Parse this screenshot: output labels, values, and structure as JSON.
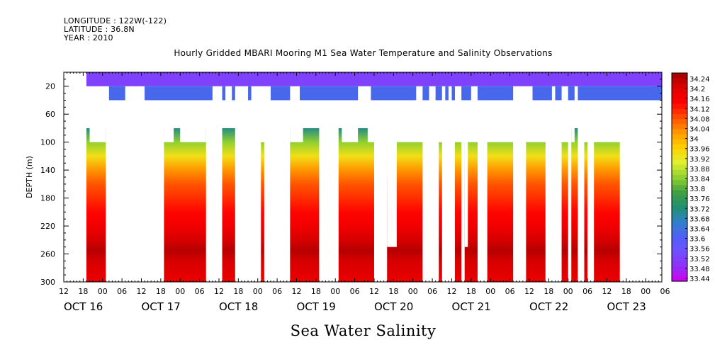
{
  "header": {
    "longitude": "LONGITUDE : 122W(-122)",
    "latitude": "LATITUDE : 36.8N",
    "year": "YEAR : 2010",
    "title": "Hourly Gridded MBARI Mooring M1 Sea Water Temperature and Salinity Observations"
  },
  "footer": {
    "variable_title": "Sea Water Salinity"
  },
  "chart_data": {
    "type": "heatmap",
    "title": "Hourly Gridded MBARI Mooring M1 Sea Water Temperature and Salinity Observations",
    "xlabel": "",
    "ylabel": "DEPTH (m)",
    "y_reversed": true,
    "ylim": [
      0,
      300
    ],
    "yticks": [
      20,
      60,
      100,
      140,
      180,
      220,
      260,
      300
    ],
    "x_units": "hours since OCT 16 12:00, 2010",
    "xlim": [
      0,
      185
    ],
    "xtick_labels": [
      "12",
      "18",
      "00",
      "06",
      "12",
      "18",
      "00",
      "06",
      "12",
      "18",
      "00",
      "06",
      "12",
      "18",
      "00",
      "06",
      "12",
      "18",
      "00",
      "06",
      "12",
      "18",
      "00",
      "06",
      "12",
      "18",
      "00",
      "06",
      "12",
      "18",
      "00",
      "06"
    ],
    "date_labels": [
      {
        "label": "OCT 16",
        "hour": 0
      },
      {
        "label": "OCT 17",
        "hour": 24
      },
      {
        "label": "OCT 18",
        "hour": 48
      },
      {
        "label": "OCT 19",
        "hour": 72
      },
      {
        "label": "OCT 20",
        "hour": 96
      },
      {
        "label": "OCT 21",
        "hour": 120
      },
      {
        "label": "OCT 22",
        "hour": 144
      },
      {
        "label": "OCT 23",
        "hour": 168
      }
    ],
    "colorbar": {
      "labels": [
        "34.24",
        "34.2",
        "34.16",
        "34.12",
        "34.08",
        "34.04",
        "34",
        "33.96",
        "33.92",
        "33.88",
        "33.84",
        "33.8",
        "33.76",
        "33.72",
        "33.68",
        "33.64",
        "33.6",
        "33.56",
        "33.52",
        "33.48",
        "33.44"
      ],
      "min": 33.44,
      "max": 34.26,
      "colors": [
        "#d000f0",
        "#9030f8",
        "#7050ff",
        "#5060f8",
        "#3080c8",
        "#209070",
        "#40a040",
        "#90d030",
        "#e0f030",
        "#ffd000",
        "#ff9a00",
        "#ff5000",
        "#ff0000",
        "#e00000",
        "#a00000"
      ]
    },
    "surface_layer": {
      "depth_top": 0,
      "depth_bottom": 40,
      "shallow_salinity": 33.53,
      "deep_salinity": 33.63,
      "deep_sensor_start_depth": 20,
      "deep_sensor_gaps": [
        [
          7,
          14
        ],
        [
          19,
          25
        ],
        [
          46,
          49
        ],
        [
          50,
          52
        ],
        [
          53,
          57
        ],
        [
          58,
          64
        ],
        [
          70,
          73
        ],
        [
          91,
          95
        ],
        [
          109,
          111
        ],
        [
          113,
          115
        ],
        [
          117,
          118
        ],
        [
          119,
          120
        ],
        [
          121,
          123
        ],
        [
          126,
          128
        ],
        [
          139,
          145
        ],
        [
          151,
          152
        ],
        [
          154,
          156
        ],
        [
          158,
          159
        ]
      ]
    },
    "profiles": [
      {
        "start": 7,
        "end": 13,
        "top": 80,
        "notches": [
          [
            8,
            13,
            100
          ]
        ]
      },
      {
        "start": 31,
        "end": 44,
        "top": 80,
        "notches": [
          [
            31,
            34,
            100
          ],
          [
            36,
            44,
            100
          ]
        ]
      },
      {
        "start": 49,
        "end": 53,
        "top": 80,
        "notches": []
      },
      {
        "start": 61,
        "end": 62,
        "top": 100,
        "notches": []
      },
      {
        "start": 70,
        "end": 79,
        "top": 80,
        "notches": [
          [
            70,
            74,
            100
          ]
        ]
      },
      {
        "start": 85,
        "end": 96,
        "top": 80,
        "notches": [
          [
            86,
            91,
            100
          ],
          [
            94,
            96,
            100
          ]
        ]
      },
      {
        "start": 100,
        "end": 111,
        "top": 100,
        "notches": [
          [
            100,
            102,
            150
          ],
          [
            100,
            103,
            250
          ]
        ]
      },
      {
        "start": 116,
        "end": 117,
        "top": 100,
        "notches": []
      },
      {
        "start": 121,
        "end": 123,
        "top": 100,
        "notches": []
      },
      {
        "start": 124,
        "end": 128,
        "top": 100,
        "notches": [
          [
            124,
            125,
            250
          ]
        ]
      },
      {
        "start": 131,
        "end": 139,
        "top": 100,
        "notches": []
      },
      {
        "start": 143,
        "end": 149,
        "top": 100,
        "notches": []
      },
      {
        "start": 154,
        "end": 156,
        "top": 100,
        "notches": []
      },
      {
        "start": 157,
        "end": 159,
        "top": 80,
        "notches": [
          [
            157,
            158,
            100
          ]
        ]
      },
      {
        "start": 161,
        "end": 162,
        "top": 100,
        "notches": []
      },
      {
        "start": 164,
        "end": 172,
        "top": 100,
        "notches": []
      }
    ],
    "vertical_profile": [
      {
        "depth": 80,
        "salinity": 33.72
      },
      {
        "depth": 100,
        "salinity": 33.85
      },
      {
        "depth": 120,
        "salinity": 33.94
      },
      {
        "depth": 140,
        "salinity": 34.03
      },
      {
        "depth": 160,
        "salinity": 34.08
      },
      {
        "depth": 180,
        "salinity": 34.11
      },
      {
        "depth": 200,
        "salinity": 34.14
      },
      {
        "depth": 220,
        "salinity": 34.17
      },
      {
        "depth": 240,
        "salinity": 34.21
      },
      {
        "depth": 255,
        "salinity": 34.24
      },
      {
        "depth": 270,
        "salinity": 34.21
      },
      {
        "depth": 300,
        "salinity": 34.18
      }
    ]
  }
}
